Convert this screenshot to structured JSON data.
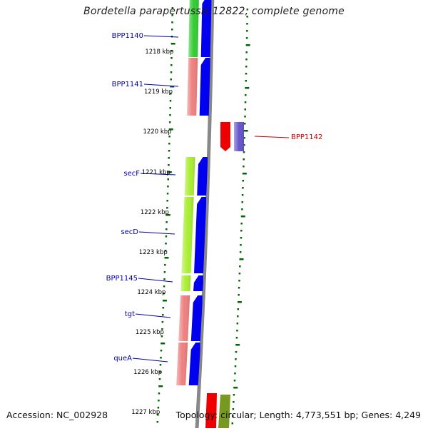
{
  "title": "Bordetella parapertussis 12822, complete genome",
  "accession_text": "Accession: NC_002928",
  "topology_text": "Topology: circular; Length: 4,773,551 bp; Genes: 4,249",
  "colors": {
    "backbone": "#888888",
    "gene_arrow": "#0000ee",
    "gene_label_forward": "#0000aa",
    "gene_label_reverse": "#cc0000",
    "tick": "#006600",
    "scale_text": "#000000"
  },
  "scale_labels": [
    "1218 kbp",
    "1219 kbp",
    "1220 kbp",
    "1221 kbp",
    "1222 kbp",
    "1223 kbp",
    "1224 kbp",
    "1225 kbp",
    "1226 kbp",
    "1227 kbp"
  ],
  "genes": [
    {
      "name": "BPP1140",
      "strand": "forward",
      "cog_color": "#33cc33"
    },
    {
      "name": "BPP1141",
      "strand": "forward",
      "cog_color": "#ee8080"
    },
    {
      "name": "BPP1142",
      "strand": "reverse",
      "cog_color": "#6655cc"
    },
    {
      "name": "secF",
      "strand": "forward",
      "cog_color": "#aaee33"
    },
    {
      "name": "secD",
      "strand": "forward",
      "cog_color": "#aaee33"
    },
    {
      "name": "BPP1145",
      "strand": "forward",
      "cog_color": "#aaee33"
    },
    {
      "name": "tgt",
      "strand": "forward",
      "cog_color": "#ee8080"
    },
    {
      "name": "queA",
      "strand": "forward",
      "cog_color": "#ee8080"
    }
  ]
}
